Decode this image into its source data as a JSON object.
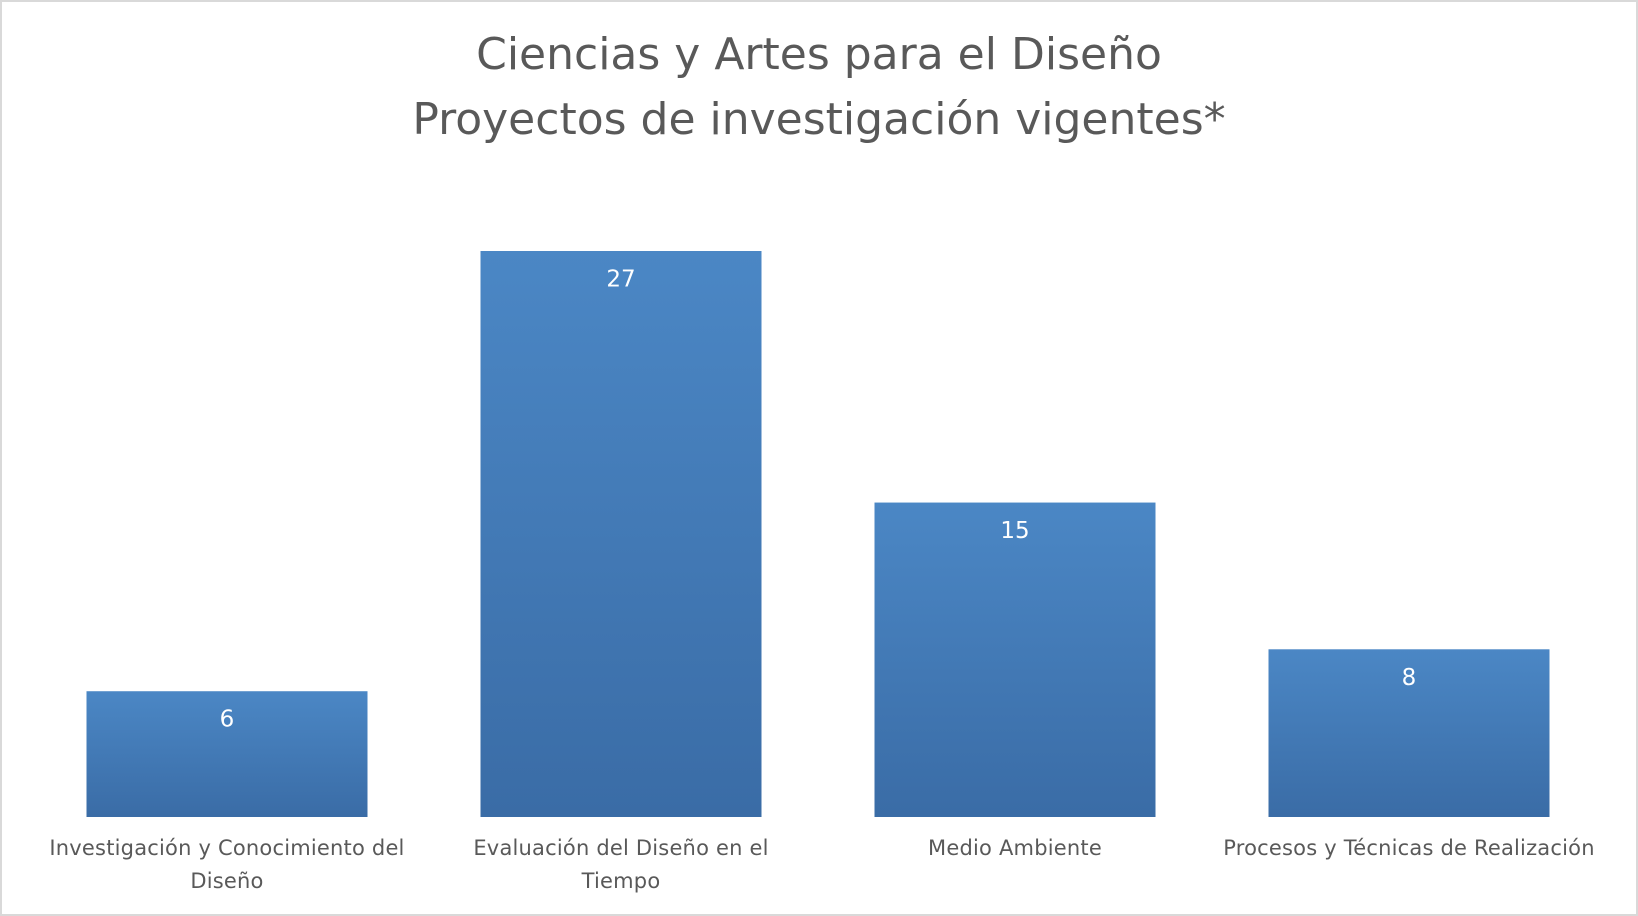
{
  "chart_data": {
    "type": "bar",
    "title": "Ciencias y Artes para el Diseño",
    "subtitle": "Proyectos de investigación vigentes*",
    "categories": [
      "Investigación y Conocimiento del Diseño",
      "Evaluación del Diseño en el Tiempo",
      "Medio Ambiente",
      "Procesos y Técnicas de Realización"
    ],
    "values": [
      6,
      27,
      15,
      8
    ],
    "color": "#4a86c5"
  }
}
